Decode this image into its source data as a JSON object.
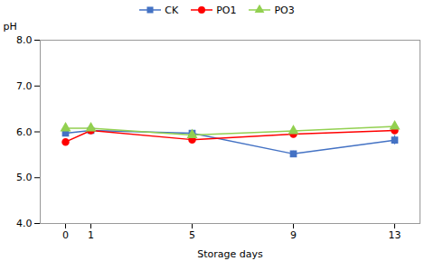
{
  "chart_data": {
    "type": "line",
    "xlabel": "Storage days",
    "ylabel": "pH",
    "x": [
      0,
      1,
      5,
      9,
      13
    ],
    "xlim": [
      -1,
      14
    ],
    "xticks": [
      0,
      1,
      5,
      9,
      13
    ],
    "ylim": [
      4,
      8
    ],
    "yticks": [
      4,
      5,
      6,
      7,
      8
    ],
    "legend": "top",
    "series": [
      {
        "name": "CK",
        "color": "#4472C4",
        "marker": "square",
        "values": [
          5.97,
          6.03,
          5.97,
          5.52,
          5.82
        ],
        "errors": [
          0.04,
          0.04,
          0.06,
          0.06,
          0.1
        ]
      },
      {
        "name": "PO1",
        "color": "#FF0000",
        "marker": "circle",
        "values": [
          5.78,
          6.03,
          5.83,
          5.95,
          6.03
        ],
        "errors": [
          0.03,
          0.05,
          0.05,
          0.03,
          0.04
        ]
      },
      {
        "name": "PO3",
        "color": "#92D050",
        "marker": "triangle",
        "values": [
          6.08,
          6.08,
          5.93,
          6.02,
          6.12
        ],
        "errors": [
          0.04,
          0.06,
          0.04,
          0.05,
          0.04
        ]
      }
    ]
  }
}
